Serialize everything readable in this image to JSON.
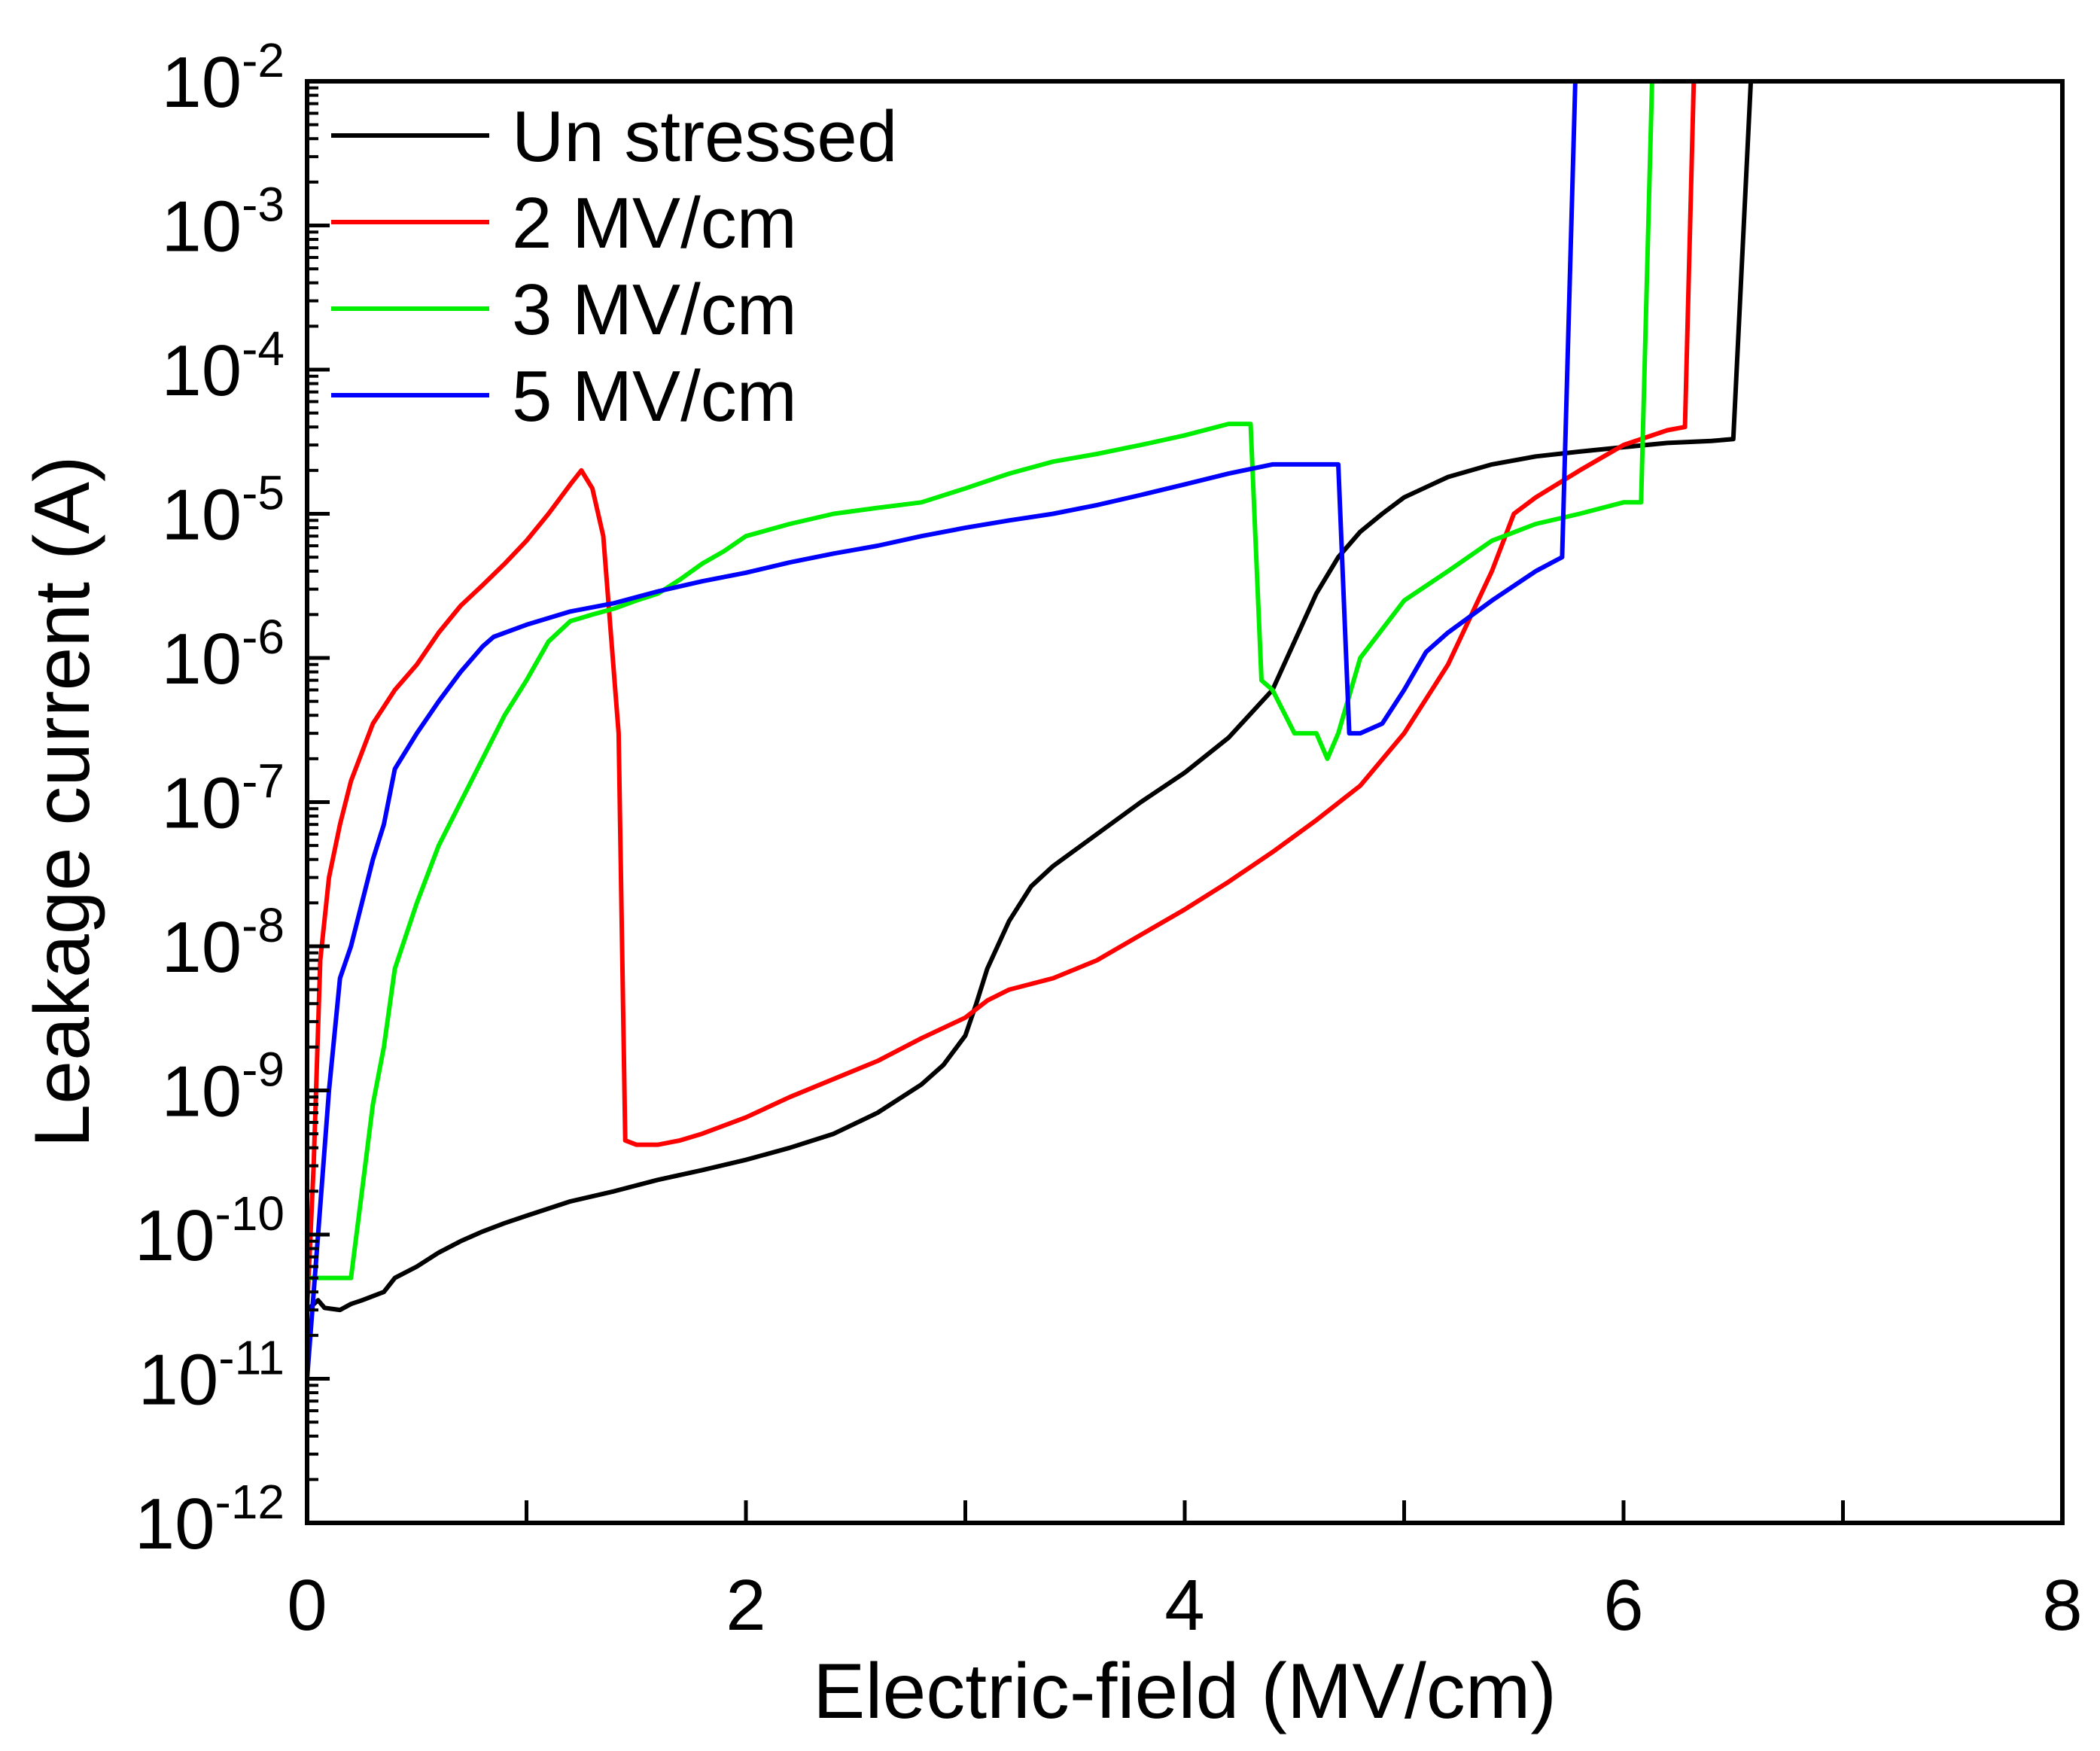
{
  "chart_data": {
    "type": "line",
    "title": "",
    "xlabel": "Electric-field (MV/cm)",
    "ylabel": "Leakage current (A)",
    "xscale": "linear",
    "yscale": "log",
    "xlim": [
      0,
      8
    ],
    "ylim_exponents": [
      -12,
      -2
    ],
    "x_ticks": [
      {
        "value": 0,
        "label": "0"
      },
      {
        "value": 2,
        "label": "2"
      },
      {
        "value": 4,
        "label": "4"
      },
      {
        "value": 6,
        "label": "6"
      },
      {
        "value": 8,
        "label": "8"
      }
    ],
    "y_ticks": [
      {
        "exp": -12,
        "base": "10",
        "sup": "-12"
      },
      {
        "exp": -11,
        "base": "10",
        "sup": "-11"
      },
      {
        "exp": -10,
        "base": "10",
        "sup": "-10"
      },
      {
        "exp": -9,
        "base": "10",
        "sup": "-9"
      },
      {
        "exp": -8,
        "base": "10",
        "sup": "-8"
      },
      {
        "exp": -7,
        "base": "10",
        "sup": "-7"
      },
      {
        "exp": -6,
        "base": "10",
        "sup": "-6"
      },
      {
        "exp": -5,
        "base": "10",
        "sup": "-5"
      },
      {
        "exp": -4,
        "base": "10",
        "sup": "-4"
      },
      {
        "exp": -3,
        "base": "10",
        "sup": "-3"
      },
      {
        "exp": -2,
        "base": "10",
        "sup": "-2"
      }
    ],
    "legend_position": "top-left",
    "series": [
      {
        "name": "Un stressed",
        "color": "#000000",
        "x": [
          0,
          0.05,
          0.08,
          0.15,
          0.2,
          0.25,
          0.35,
          0.4,
          0.5,
          0.6,
          0.7,
          0.8,
          0.9,
          1.0,
          1.2,
          1.4,
          1.6,
          1.8,
          2.0,
          2.2,
          2.4,
          2.6,
          2.8,
          2.9,
          3.0,
          3.05,
          3.1,
          3.2,
          3.3,
          3.4,
          3.6,
          3.8,
          4.0,
          4.2,
          4.4,
          4.5,
          4.6,
          4.7,
          4.8,
          4.9,
          5.0,
          5.2,
          5.4,
          5.6,
          5.8,
          6.0,
          6.2,
          6.4,
          6.5,
          6.58
        ],
        "y": [
          3e-11,
          3.5e-11,
          3.1e-11,
          3e-11,
          3.3e-11,
          3.5e-11,
          4e-11,
          5e-11,
          6e-11,
          7.5e-11,
          9e-11,
          1.05e-10,
          1.2e-10,
          1.35e-10,
          1.7e-10,
          2e-10,
          2.4e-10,
          2.8e-10,
          3.3e-10,
          4e-10,
          5e-10,
          7e-10,
          1.1e-09,
          1.5e-09,
          2.4e-09,
          4e-09,
          7e-09,
          1.5e-08,
          2.6e-08,
          3.6e-08,
          6e-08,
          1e-07,
          1.6e-07,
          2.8e-07,
          6e-07,
          1.3e-06,
          2.8e-06,
          5e-06,
          7.5e-06,
          1e-05,
          1.3e-05,
          1.8e-05,
          2.2e-05,
          2.5e-05,
          2.7e-05,
          2.9e-05,
          3.1e-05,
          3.2e-05,
          3.3e-05,
          0.01
        ]
      },
      {
        "name": "2 MV/cm",
        "color": "#ff0000",
        "x": [
          0,
          0.03,
          0.06,
          0.1,
          0.15,
          0.2,
          0.3,
          0.4,
          0.5,
          0.6,
          0.7,
          0.8,
          0.9,
          1.0,
          1.1,
          1.2,
          1.25,
          1.3,
          1.35,
          1.42,
          1.45,
          1.5,
          1.6,
          1.7,
          1.8,
          2.0,
          2.2,
          2.4,
          2.6,
          2.8,
          3.0,
          3.1,
          3.2,
          3.4,
          3.6,
          3.8,
          4.0,
          4.2,
          4.4,
          4.6,
          4.8,
          5.0,
          5.2,
          5.4,
          5.5,
          5.6,
          5.8,
          6.0,
          6.2,
          6.28,
          6.32,
          6.38
        ],
        "y": [
          3e-11,
          3e-10,
          8e-09,
          3e-08,
          7e-08,
          1.4e-07,
          3.5e-07,
          6e-07,
          9e-07,
          1.5e-06,
          2.3e-06,
          3.2e-06,
          4.5e-06,
          6.5e-06,
          1e-05,
          1.6e-05,
          2e-05,
          1.5e-05,
          7e-06,
          3e-07,
          4.5e-10,
          4.2e-10,
          4.2e-10,
          4.5e-10,
          5e-10,
          6.5e-10,
          9e-10,
          1.2e-09,
          1.6e-09,
          2.3e-09,
          3.2e-09,
          4.2e-09,
          5e-09,
          6e-09,
          8e-09,
          1.2e-08,
          1.8e-08,
          2.8e-08,
          4.5e-08,
          7.5e-08,
          1.3e-07,
          3e-07,
          9e-07,
          4e-06,
          1e-05,
          1.3e-05,
          2e-05,
          3e-05,
          3.8e-05,
          4e-05,
          0.01,
          0.01
        ]
      },
      {
        "name": "3 MV/cm",
        "color": "#00ee00",
        "x": [
          0,
          0.05,
          0.1,
          0.15,
          0.2,
          0.25,
          0.3,
          0.35,
          0.4,
          0.5,
          0.6,
          0.7,
          0.8,
          0.9,
          1.0,
          1.1,
          1.2,
          1.3,
          1.4,
          1.5,
          1.6,
          1.7,
          1.8,
          1.9,
          2.0,
          2.2,
          2.4,
          2.6,
          2.8,
          3.0,
          3.2,
          3.4,
          3.6,
          3.8,
          4.0,
          4.2,
          4.3,
          4.35,
          4.4,
          4.5,
          4.6,
          4.65,
          4.7,
          4.8,
          5.0,
          5.2,
          5.4,
          5.6,
          5.8,
          6.0,
          6.08,
          6.13,
          6.2,
          6.5,
          6.75
        ],
        "y": [
          5e-11,
          5e-11,
          5e-11,
          5e-11,
          5e-11,
          2e-10,
          8e-10,
          2e-09,
          7e-09,
          2e-08,
          5e-08,
          1e-07,
          2e-07,
          4e-07,
          7e-07,
          1.3e-06,
          1.8e-06,
          2e-06,
          2.2e-06,
          2.5e-06,
          2.8e-06,
          3.5e-06,
          4.5e-06,
          5.5e-06,
          7e-06,
          8.5e-06,
          1e-05,
          1.1e-05,
          1.2e-05,
          1.5e-05,
          1.9e-05,
          2.3e-05,
          2.6e-05,
          3e-05,
          3.5e-05,
          4.2e-05,
          4.2e-05,
          7e-07,
          6e-07,
          3e-07,
          3e-07,
          2e-07,
          3e-07,
          1e-06,
          2.5e-06,
          4e-06,
          6.5e-06,
          8.5e-06,
          1e-05,
          1.2e-05,
          1.2e-05,
          0.01,
          0.01,
          0.01,
          0.01
        ]
      },
      {
        "name": "5 MV/cm",
        "color": "#0000ff",
        "x": [
          0,
          0.05,
          0.1,
          0.15,
          0.2,
          0.3,
          0.35,
          0.4,
          0.5,
          0.6,
          0.7,
          0.8,
          0.85,
          1.0,
          1.2,
          1.4,
          1.6,
          1.8,
          2.0,
          2.2,
          2.4,
          2.6,
          2.8,
          3.0,
          3.2,
          3.4,
          3.6,
          3.8,
          4.0,
          4.2,
          4.4,
          4.5,
          4.6,
          4.7,
          4.75,
          4.8,
          4.9,
          5.0,
          5.1,
          5.2,
          5.4,
          5.6,
          5.72,
          5.78,
          5.85,
          6.0
        ],
        "y": [
          1e-11,
          1e-10,
          1e-09,
          6e-09,
          1e-08,
          4e-08,
          7e-08,
          1.7e-07,
          3e-07,
          5e-07,
          8e-07,
          1.2e-06,
          1.4e-06,
          1.7e-06,
          2.1e-06,
          2.4e-06,
          2.9e-06,
          3.4e-06,
          3.9e-06,
          4.6e-06,
          5.3e-06,
          6e-06,
          7e-06,
          8e-06,
          9e-06,
          1e-05,
          1.15e-05,
          1.35e-05,
          1.6e-05,
          1.9e-05,
          2.2e-05,
          2.2e-05,
          2.2e-05,
          2.2e-05,
          3e-07,
          3e-07,
          3.5e-07,
          6e-07,
          1.1e-06,
          1.5e-06,
          2.5e-06,
          4e-06,
          5e-06,
          0.01,
          0.01,
          0.01
        ]
      }
    ]
  }
}
